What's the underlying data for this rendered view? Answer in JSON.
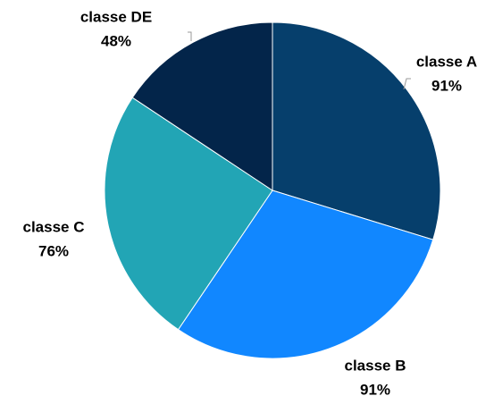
{
  "chart_data": {
    "type": "pie",
    "categories": [
      "classe A",
      "classe B",
      "classe C",
      "classe DE"
    ],
    "values": [
      91,
      91,
      76,
      48
    ],
    "value_labels": [
      "91%",
      "91%",
      "76%",
      "48%"
    ],
    "colors": [
      "#063f6c",
      "#1187ff",
      "#22a5b5",
      "#03254a"
    ]
  }
}
